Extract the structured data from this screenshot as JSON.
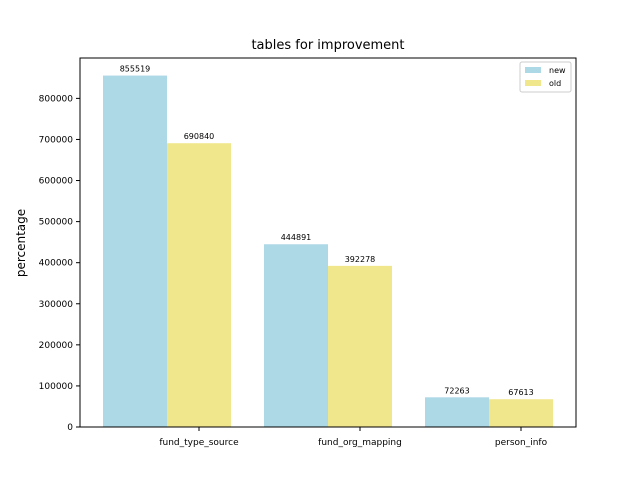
{
  "chart_data": {
    "type": "bar",
    "title": "tables for improvement",
    "xlabel": "",
    "ylabel": "percentage",
    "categories": [
      "fund_type_source",
      "fund_org_mapping",
      "person_info"
    ],
    "series": [
      {
        "name": "new",
        "values": [
          855519,
          444891,
          72263
        ],
        "color": "#add8e6"
      },
      {
        "name": "old",
        "values": [
          690840,
          392278,
          67613
        ],
        "color": "#f0e68c"
      }
    ],
    "ylim": [
      0,
      898295
    ],
    "yticks": [
      0,
      100000,
      200000,
      300000,
      400000,
      500000,
      600000,
      700000,
      800000
    ],
    "grid": false,
    "legend_position": "top-right"
  }
}
